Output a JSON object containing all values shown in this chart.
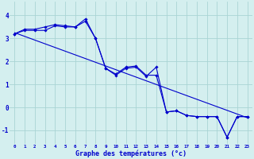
{
  "title": "",
  "xlabel": "Graphe des températures (°c)",
  "background_color": "#d4efef",
  "grid_color": "#aad4d4",
  "line_color": "#0000cc",
  "x_values": [
    0,
    1,
    2,
    3,
    4,
    5,
    6,
    7,
    8,
    9,
    10,
    11,
    12,
    13,
    14,
    15,
    16,
    17,
    18,
    19,
    20,
    21,
    22,
    23
  ],
  "series1": [
    3.2,
    3.4,
    3.4,
    3.5,
    3.6,
    3.55,
    3.5,
    3.85,
    3.0,
    1.7,
    1.45,
    1.75,
    1.8,
    1.4,
    1.4,
    -0.2,
    -0.15,
    -0.35,
    -0.4,
    -0.4,
    -0.4,
    -1.3,
    -0.4,
    -0.4
  ],
  "series2": [
    3.2,
    3.35,
    3.35,
    3.35,
    3.55,
    3.5,
    3.5,
    3.75,
    3.0,
    1.7,
    1.4,
    1.7,
    1.75,
    1.35,
    1.75,
    -0.2,
    -0.15,
    -0.35,
    -0.4,
    -0.4,
    -0.4,
    -1.3,
    -0.4,
    -0.4
  ],
  "trend_line": {
    "x_start": 0,
    "y_start": 3.25,
    "x_end": 23,
    "y_end": -0.45
  },
  "ylim": [
    -1.6,
    4.6
  ],
  "xlim": [
    -0.5,
    23.5
  ],
  "yticks": [
    -1,
    0,
    1,
    2,
    3,
    4
  ],
  "xtick_labels": [
    "0",
    "1",
    "2",
    "3",
    "4",
    "5",
    "6",
    "7",
    "8",
    "9",
    "10",
    "11",
    "12",
    "13",
    "14",
    "15",
    "16",
    "17",
    "18",
    "19",
    "20",
    "21",
    "22",
    "23"
  ],
  "figsize": [
    3.2,
    2.0
  ],
  "dpi": 100
}
